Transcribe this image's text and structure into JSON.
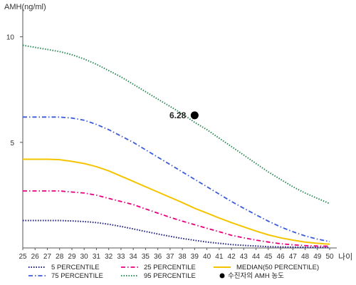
{
  "chart_data": {
    "type": "line",
    "title": "",
    "ylabel": "AMH(ng/ml)",
    "xlabel": "나이",
    "xlim": [
      25,
      50
    ],
    "ylim": [
      0,
      11
    ],
    "x": [
      25,
      26,
      27,
      28,
      29,
      30,
      31,
      32,
      33,
      34,
      35,
      36,
      37,
      38,
      39,
      40,
      41,
      42,
      43,
      44,
      45,
      46,
      47,
      48,
      49,
      50
    ],
    "y_ticks": [
      5,
      10
    ],
    "grid": false,
    "legend_position": "bottom",
    "series": [
      {
        "name": "5 PERCENTILE",
        "color": "#1a1a80",
        "style": "dotted",
        "values": [
          1.3,
          1.3,
          1.3,
          1.3,
          1.28,
          1.25,
          1.2,
          1.12,
          1.02,
          0.9,
          0.78,
          0.66,
          0.55,
          0.45,
          0.36,
          0.28,
          0.22,
          0.16,
          0.12,
          0.09,
          0.06,
          0.05,
          0.04,
          0.03,
          0.03,
          0.02
        ]
      },
      {
        "name": "25 PERCENTILE",
        "color": "#e6007e",
        "style": "dashdot",
        "values": [
          2.7,
          2.7,
          2.7,
          2.7,
          2.65,
          2.6,
          2.5,
          2.35,
          2.2,
          2.05,
          1.85,
          1.65,
          1.45,
          1.27,
          1.1,
          0.93,
          0.77,
          0.6,
          0.48,
          0.37,
          0.28,
          0.2,
          0.15,
          0.11,
          0.09,
          0.08
        ]
      },
      {
        "name": "MEDIAN(50 PERCENTILE)",
        "color": "#f5c400",
        "style": "solid",
        "values": [
          4.2,
          4.2,
          4.2,
          4.18,
          4.1,
          4.0,
          3.85,
          3.65,
          3.4,
          3.15,
          2.9,
          2.65,
          2.4,
          2.15,
          1.88,
          1.65,
          1.42,
          1.2,
          1.0,
          0.8,
          0.62,
          0.48,
          0.37,
          0.28,
          0.22,
          0.18
        ]
      },
      {
        "name": "75 PERCENTILE",
        "color": "#3b5bdb",
        "style": "dashdot",
        "values": [
          6.2,
          6.2,
          6.2,
          6.2,
          6.15,
          6.05,
          5.85,
          5.6,
          5.3,
          5.0,
          4.65,
          4.3,
          3.95,
          3.6,
          3.25,
          2.9,
          2.55,
          2.2,
          1.88,
          1.57,
          1.27,
          1.0,
          0.77,
          0.57,
          0.42,
          0.3
        ]
      },
      {
        "name": "95 PERCENTILE",
        "color": "#2e8b57",
        "style": "dotted",
        "values": [
          9.6,
          9.5,
          9.4,
          9.3,
          9.15,
          8.95,
          8.7,
          8.4,
          8.1,
          7.75,
          7.4,
          7.05,
          6.7,
          6.35,
          5.95,
          5.6,
          5.2,
          4.8,
          4.4,
          4.0,
          3.6,
          3.25,
          2.9,
          2.6,
          2.35,
          2.1
        ]
      }
    ],
    "point": {
      "name": "수진자의 AMH 농도",
      "x": 39,
      "y": 6.28,
      "label": "6.28",
      "color": "#000000"
    },
    "legend": [
      "5 PERCENTILE",
      "25 PERCENTILE",
      "MEDIAN(50 PERCENTILE)",
      "75 PERCENTILE",
      "95 PERCENTILE",
      "수진자의 AMH 농도"
    ]
  }
}
